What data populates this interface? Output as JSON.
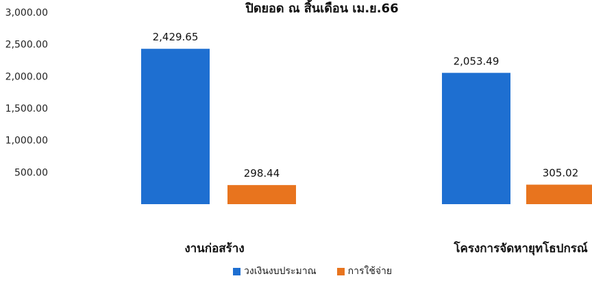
{
  "chart_data": {
    "type": "bar",
    "title": "ปิดยอด ณ สิ้นเดือน เม.ย.66",
    "categories": [
      "งานก่อสร้าง",
      "โครงการจัดหายุทโธปกรณ์"
    ],
    "series": [
      {
        "name": "วงเงินงบประมาณ",
        "values": [
          2429.65,
          2053.49
        ],
        "labels": [
          "2,429.65",
          "2,053.49"
        ],
        "color": "#1e6fd1"
      },
      {
        "name": "การใช้จ่าย",
        "values": [
          298.44,
          305.02
        ],
        "labels": [
          "298.44",
          "305.02"
        ],
        "color": "#e8741e"
      }
    ],
    "ylim": [
      0,
      3000
    ],
    "yticks": [
      500,
      1000,
      1500,
      2000,
      2500,
      3000
    ],
    "ytick_labels": [
      "500.00",
      "1,000.00",
      "1,500.00",
      "2,000.00",
      "2,500.00",
      "3,000.00"
    ],
    "xlabel": "",
    "ylabel": "",
    "grid": false,
    "legend_position": "bottom"
  }
}
